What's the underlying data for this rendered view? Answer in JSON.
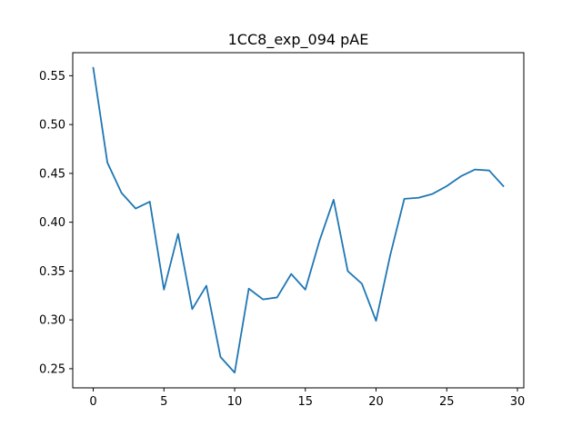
{
  "chart_data": {
    "type": "line",
    "title": "1CC8_exp_094 pAE",
    "xlabel": "",
    "ylabel": "",
    "xlim": [
      -1.45,
      30.45
    ],
    "ylim": [
      0.2304,
      0.5736
    ],
    "x_ticks": [
      0,
      5,
      10,
      15,
      20,
      25,
      30
    ],
    "y_ticks": [
      0.25,
      0.3,
      0.35,
      0.4,
      0.45,
      0.5,
      0.55
    ],
    "grid": false,
    "legend": "none",
    "series": [
      {
        "color": "#1f77b4",
        "x": [
          0,
          1,
          2,
          3,
          4,
          5,
          6,
          7,
          8,
          9,
          10,
          11,
          12,
          13,
          14,
          15,
          16,
          17,
          18,
          19,
          20,
          21,
          22,
          23,
          24,
          25,
          26,
          27,
          28,
          29
        ],
        "values": [
          0.558,
          0.461,
          0.43,
          0.414,
          0.421,
          0.331,
          0.388,
          0.311,
          0.335,
          0.262,
          0.246,
          0.332,
          0.321,
          0.323,
          0.347,
          0.331,
          0.381,
          0.423,
          0.35,
          0.337,
          0.299,
          0.366,
          0.424,
          0.425,
          0.429,
          0.437,
          0.447,
          0.454,
          0.453,
          0.437
        ]
      }
    ]
  }
}
